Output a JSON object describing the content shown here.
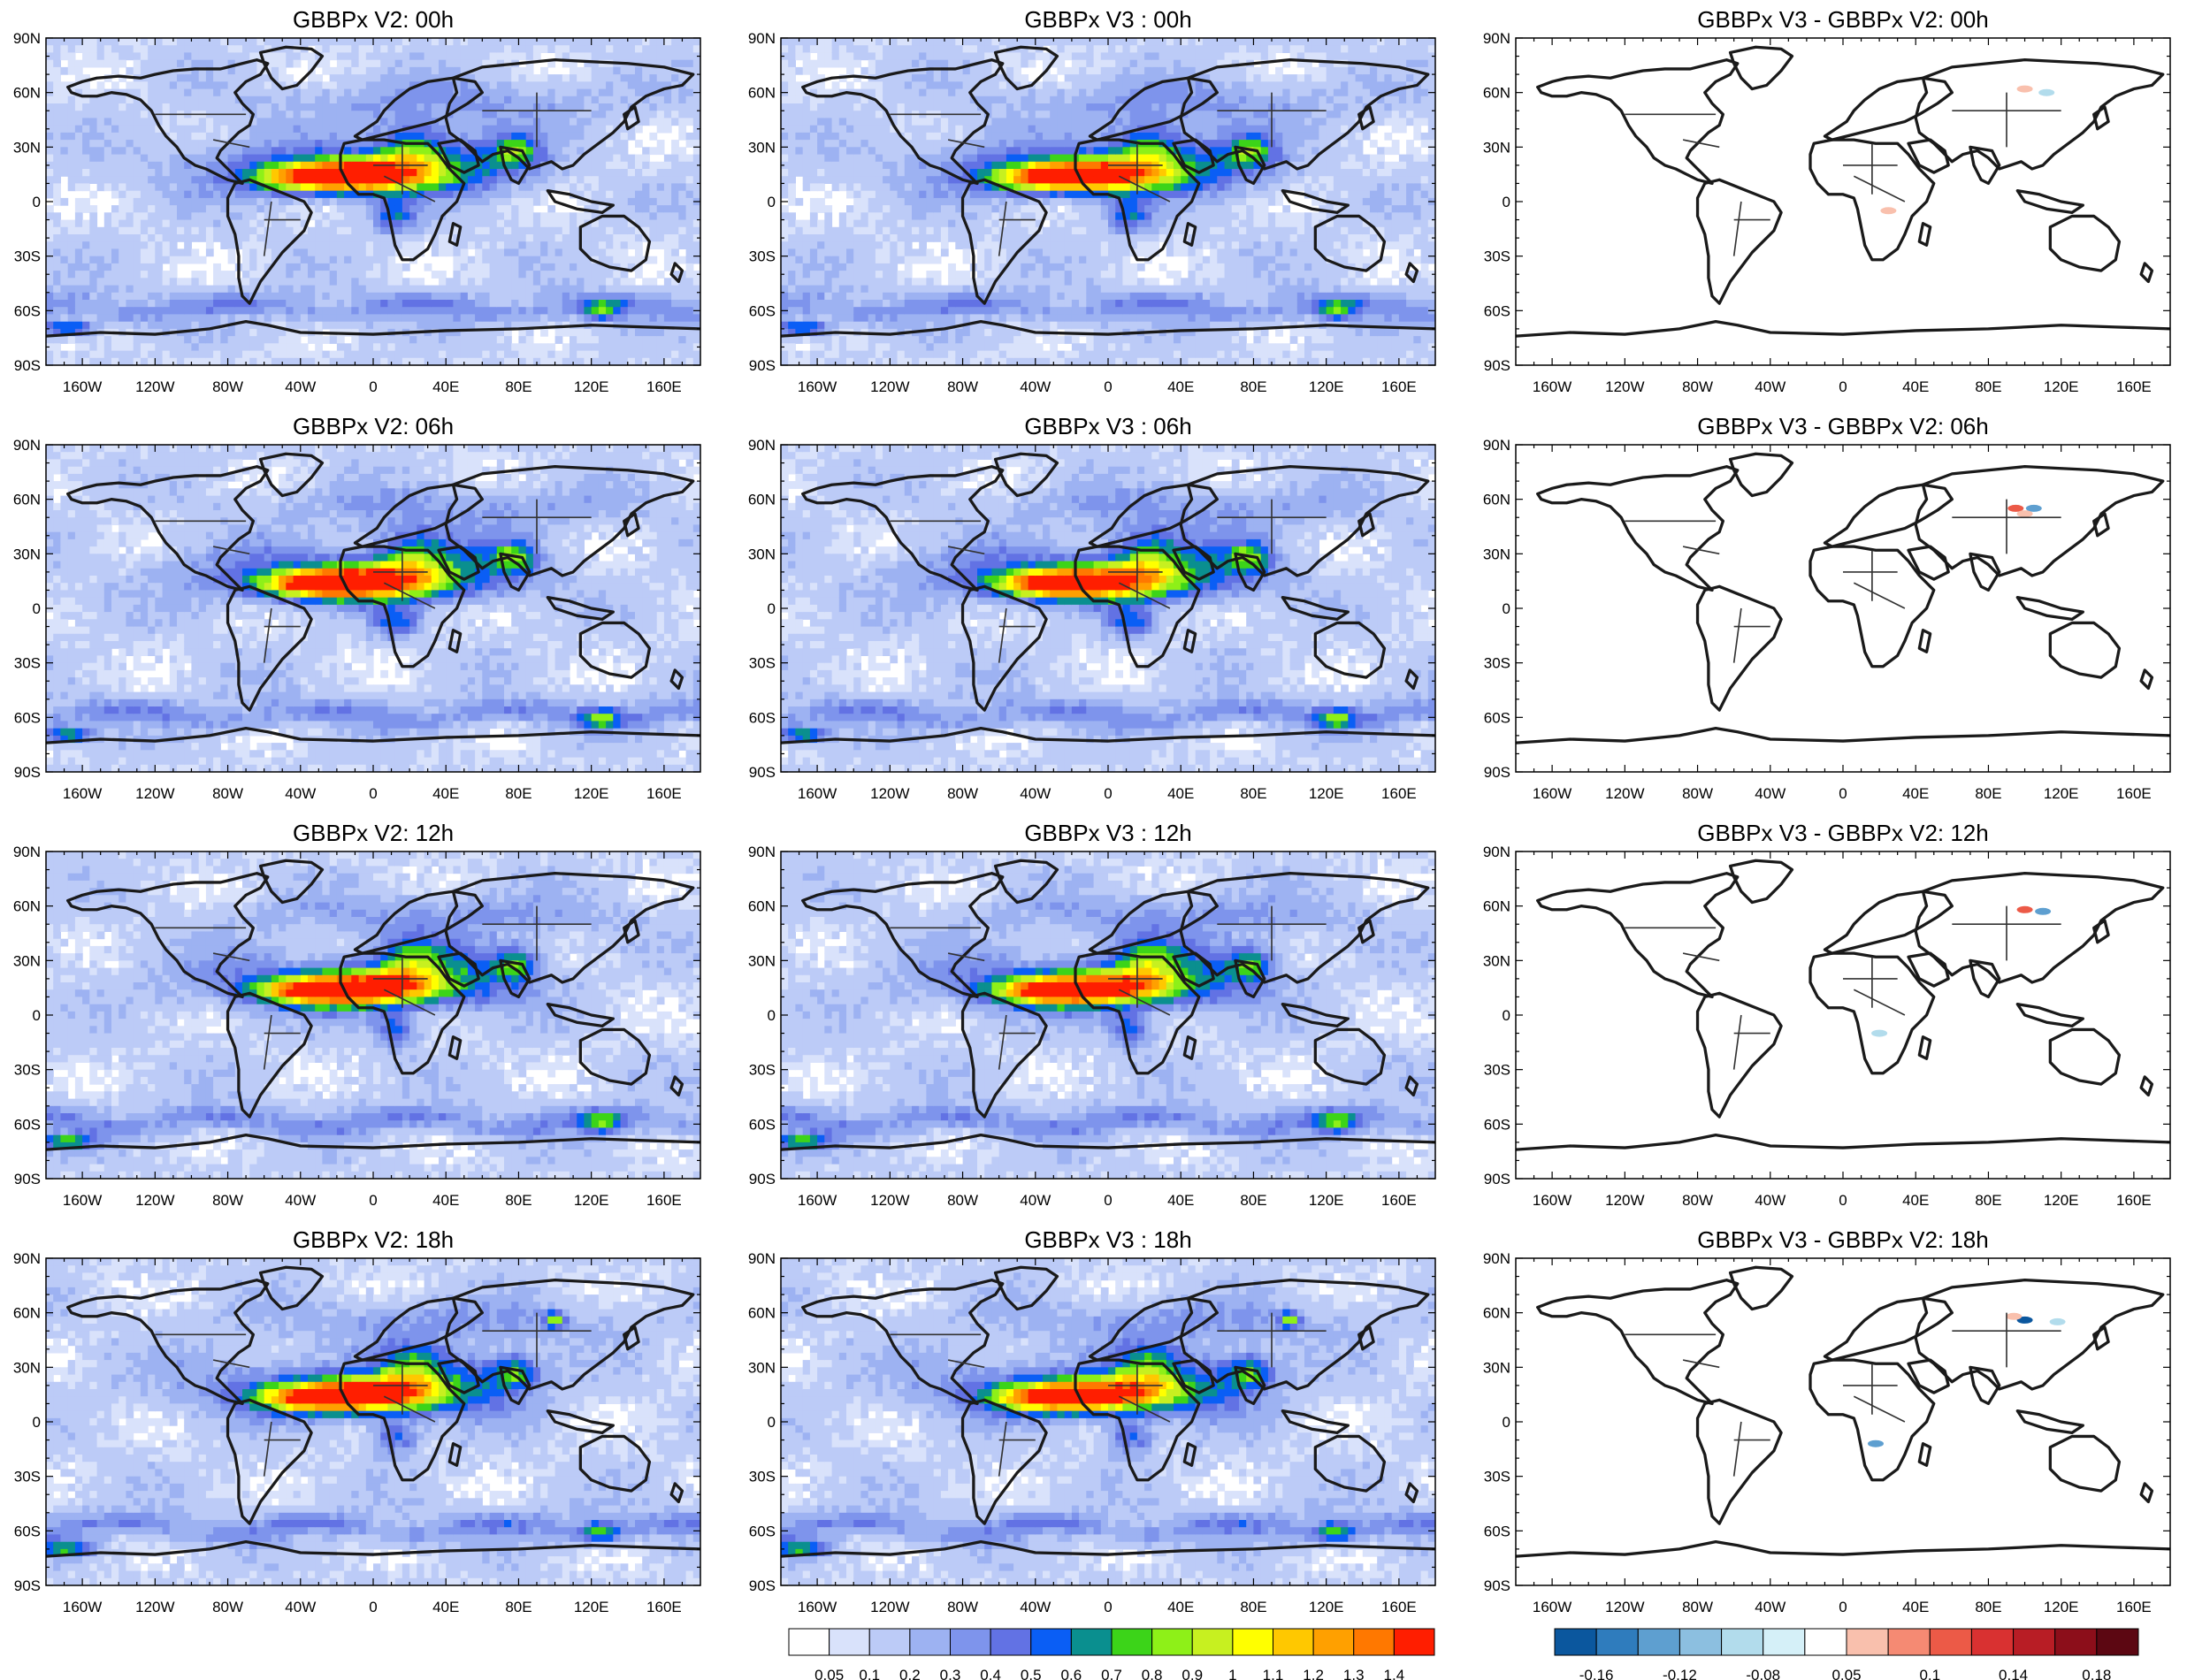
{
  "panels": [
    {
      "title": "GBBPx V2: 00h",
      "type": "field",
      "variant": "v2",
      "hour": 0
    },
    {
      "title": "GBBPx V3 : 00h",
      "type": "field",
      "variant": "v3",
      "hour": 0
    },
    {
      "title": "GBBPx V3 - GBBPx V2: 00h",
      "type": "diff",
      "hour": 0
    },
    {
      "title": "GBBPx V2: 06h",
      "type": "field",
      "variant": "v2",
      "hour": 6
    },
    {
      "title": "GBBPx V3 : 06h",
      "type": "field",
      "variant": "v3",
      "hour": 6
    },
    {
      "title": "GBBPx V3 - GBBPx V2: 06h",
      "type": "diff",
      "hour": 6
    },
    {
      "title": "GBBPx V2: 12h",
      "type": "field",
      "variant": "v2",
      "hour": 12
    },
    {
      "title": "GBBPx V3 : 12h",
      "type": "field",
      "variant": "v3",
      "hour": 12
    },
    {
      "title": "GBBPx V3 - GBBPx V2: 12h",
      "type": "diff",
      "hour": 12
    },
    {
      "title": "GBBPx V2: 18h",
      "type": "field",
      "variant": "v2",
      "hour": 18
    },
    {
      "title": "GBBPx V3 : 18h",
      "type": "field",
      "variant": "v3",
      "hour": 18
    },
    {
      "title": "GBBPx V3 - GBBPx V2: 18h",
      "type": "diff",
      "hour": 18
    }
  ],
  "axes": {
    "lat_ticks": [
      "90N",
      "60N",
      "30N",
      "0",
      "30S",
      "60S",
      "90S"
    ],
    "lat_values": [
      90,
      60,
      30,
      0,
      -30,
      -60,
      -90
    ],
    "lon_ticks": [
      "160W",
      "120W",
      "80W",
      "40W",
      "0",
      "40E",
      "80E",
      "120E",
      "160E"
    ],
    "lon_values": [
      -160,
      -120,
      -80,
      -40,
      0,
      40,
      80,
      120,
      160
    ],
    "lon_range": [
      -180,
      180
    ],
    "lat_range": [
      -90,
      90
    ]
  },
  "colorbars": {
    "field": {
      "labels": [
        "0.05",
        "0.1",
        "0.2",
        "0.3",
        "0.4",
        "0.5",
        "0.6",
        "0.7",
        "0.8",
        "0.9",
        "1",
        "1.1",
        "1.2",
        "1.3",
        "1.4"
      ],
      "colors": [
        "#ffffff",
        "#d9e2fb",
        "#bccbf7",
        "#9db2f2",
        "#7e94ec",
        "#6272e4",
        "#0a5ef5",
        "#0a8f8f",
        "#3cd419",
        "#8ef018",
        "#c7f020",
        "#ffff00",
        "#ffc800",
        "#ffa000",
        "#ff7800",
        "#ff1e00"
      ]
    },
    "diff": {
      "labels": [
        "-0.16",
        "-0.12",
        "-0.08",
        "0.05",
        "0.1",
        "0.14",
        "0.18"
      ],
      "colors": [
        "#0b579e",
        "#2f7cbd",
        "#5e9fd0",
        "#8cbfe0",
        "#b2dcec",
        "#d5f0f8",
        "#ffffff",
        "#f9c0ad",
        "#f58a73",
        "#ec5a47",
        "#d93131",
        "#b81d25",
        "#8c0e1a",
        "#5c0712"
      ]
    }
  }
}
